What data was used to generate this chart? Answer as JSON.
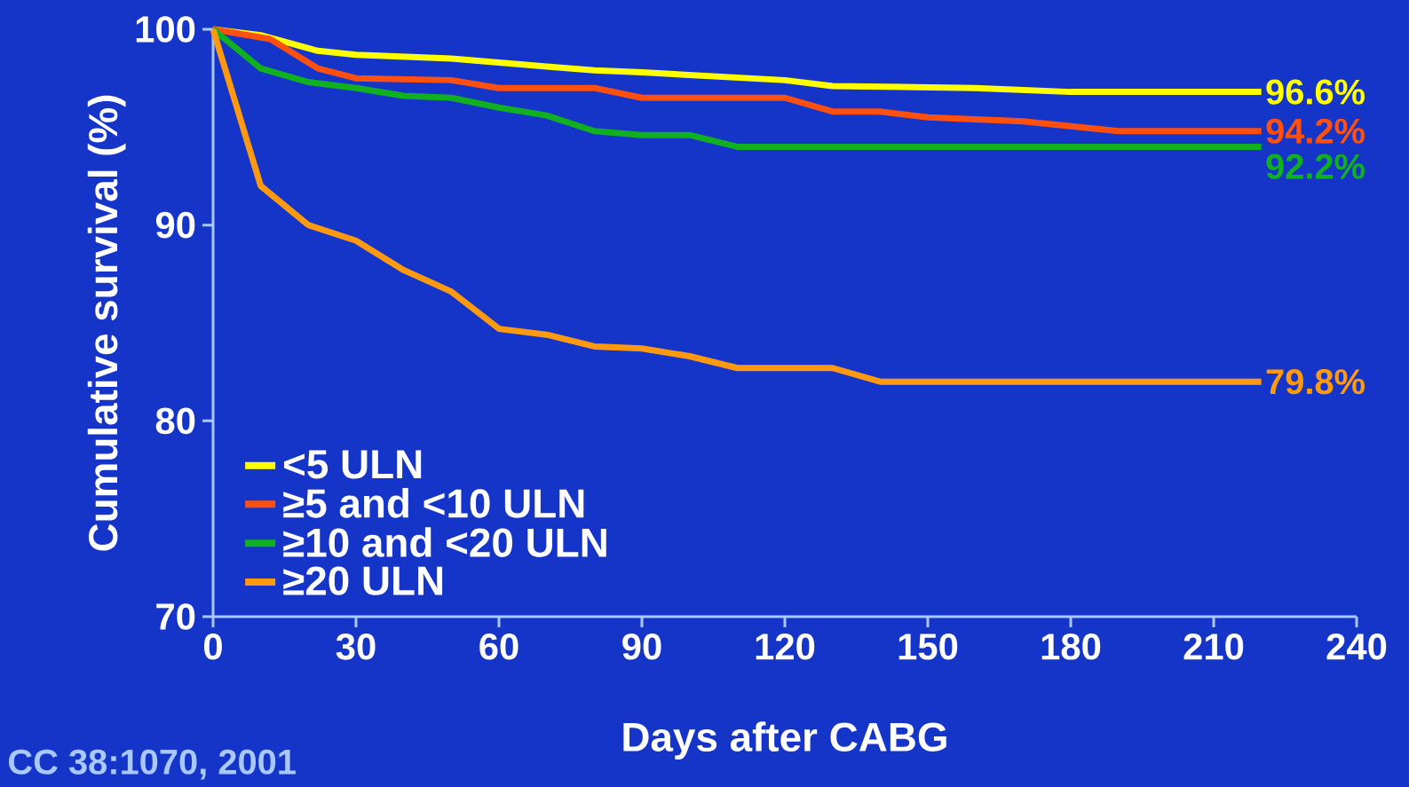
{
  "chart_data": {
    "type": "line",
    "xlabel": "Days after CABG",
    "ylabel": "Cumulative survival (%)",
    "xlim": [
      0,
      240
    ],
    "ylim": [
      70,
      100
    ],
    "xticks": [
      0,
      30,
      60,
      90,
      120,
      150,
      180,
      210,
      240
    ],
    "yticks": [
      70,
      80,
      90,
      100
    ],
    "grid": false,
    "legend": "bottom left",
    "marker": "none",
    "line_style": "solid",
    "series": [
      {
        "name": "<5 ULN",
        "color": "#ffff00",
        "x": [
          0,
          10,
          22,
          30,
          50,
          70,
          80,
          90,
          105,
          120,
          130,
          160,
          180,
          220
        ],
        "values": [
          100,
          99.7,
          98.9,
          98.7,
          98.5,
          98.1,
          97.9,
          97.8,
          97.6,
          97.4,
          97.1,
          97.0,
          96.8,
          96.8
        ]
      },
      {
        "name": "≥5 and <10 ULN",
        "color": "#ff5010",
        "x": [
          0,
          12,
          22,
          30,
          50,
          60,
          80,
          90,
          120,
          130,
          140,
          150,
          170,
          190,
          220
        ],
        "values": [
          100,
          99.5,
          98.0,
          97.5,
          97.4,
          97.0,
          97.0,
          96.5,
          96.5,
          95.8,
          95.8,
          95.5,
          95.3,
          94.8,
          94.8
        ]
      },
      {
        "name": "≥10 and <20 ULN",
        "color": "#10b020",
        "x": [
          0,
          10,
          20,
          30,
          40,
          50,
          60,
          70,
          80,
          90,
          100,
          110,
          220
        ],
        "values": [
          100,
          98.0,
          97.3,
          97.0,
          96.6,
          96.5,
          96.0,
          95.6,
          94.8,
          94.6,
          94.6,
          94.0,
          94.0
        ]
      },
      {
        "name": "≥20 ULN",
        "color": "#ff9a10",
        "x": [
          0,
          10,
          20,
          30,
          40,
          50,
          60,
          70,
          80,
          90,
          100,
          110,
          130,
          140,
          220
        ],
        "values": [
          100,
          92.0,
          90.0,
          89.2,
          87.7,
          86.6,
          84.7,
          84.4,
          83.8,
          83.7,
          83.3,
          82.7,
          82.7,
          82.0,
          82.0
        ]
      }
    ],
    "annotations": [
      "96.6%",
      "94.2%",
      "92.2%",
      "79.8%",
      "CC 38:1070, 2001"
    ]
  }
}
